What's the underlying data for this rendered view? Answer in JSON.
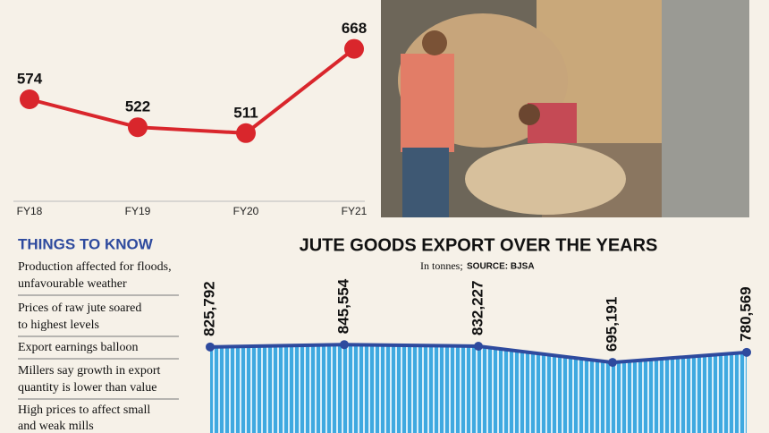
{
  "chart_data": [
    {
      "type": "line",
      "categories": [
        "FY18",
        "FY19",
        "FY20",
        "FY21"
      ],
      "values": [
        574,
        522,
        511,
        668
      ],
      "color": "#d9262c",
      "ylim": [
        384,
        759
      ]
    },
    {
      "type": "area",
      "title": "JUTE GOODS EXPORT OVER THE YEARS",
      "subtitle": "In tonnes;",
      "source": "SOURCE: BJSA",
      "categories": [
        null,
        null,
        null,
        null,
        null
      ],
      "values": [
        825792,
        845554,
        832227,
        695191,
        780569
      ],
      "value_labels": [
        "825,792",
        "845,554",
        "832,227",
        "695,191",
        "780,569"
      ],
      "color": "#3fa9e0",
      "line_color": "#2e4a9e",
      "ylim": [
        100000,
        900000
      ]
    }
  ],
  "things_to_know": {
    "title": "THINGS TO KNOW",
    "items": [
      "Production affected for floods, unfavourable weather",
      "Prices of raw jute soared to highest levels",
      "Export earnings balloon",
      "Millers say growth in export quantity is lower than value",
      "High prices to affect small and weak mills"
    ]
  }
}
